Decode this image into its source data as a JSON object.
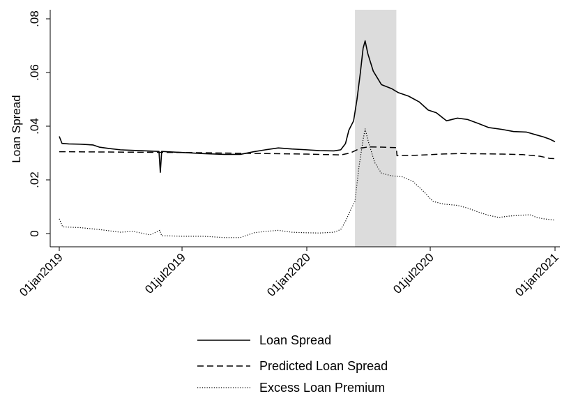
{
  "chart_data": {
    "type": "line",
    "title": "",
    "xlabel": "",
    "ylabel": "Loan Spread",
    "x_axis": {
      "type": "date",
      "range": [
        "2019-01-01",
        "2021-01-01"
      ],
      "ticks": [
        {
          "date": "2019-01-01",
          "label": "01jan2019"
        },
        {
          "date": "2019-07-01",
          "label": "01jul2019"
        },
        {
          "date": "2020-01-01",
          "label": "01jan2020"
        },
        {
          "date": "2020-07-01",
          "label": "01jul2020"
        },
        {
          "date": "2021-01-01",
          "label": "01jan2021"
        }
      ]
    },
    "y_axis": {
      "range": [
        0,
        0.08
      ],
      "ticks": [
        {
          "value": 0,
          "label": "0"
        },
        {
          "value": 0.02,
          "label": ".02"
        },
        {
          "value": 0.04,
          "label": ".04"
        },
        {
          "value": 0.06,
          "label": ".06"
        },
        {
          "value": 0.08,
          "label": ".08"
        }
      ]
    },
    "grid": false,
    "legend_position": "bottom",
    "shaded_period": {
      "start": "2020-03-12",
      "end": "2020-05-12",
      "color": "#dcdcdc"
    },
    "series": [
      {
        "name": "Loan Spread",
        "style": "solid",
        "color": "#000000",
        "points": [
          [
            "2019-01-01",
            0.0362
          ],
          [
            "2019-01-05",
            0.0336
          ],
          [
            "2019-01-15",
            0.0334
          ],
          [
            "2019-02-01",
            0.0333
          ],
          [
            "2019-02-20",
            0.033
          ],
          [
            "2019-03-01",
            0.0322
          ],
          [
            "2019-03-15",
            0.0317
          ],
          [
            "2019-04-01",
            0.0312
          ],
          [
            "2019-04-20",
            0.031
          ],
          [
            "2019-05-10",
            0.0308
          ],
          [
            "2019-05-28",
            0.0306
          ],
          [
            "2019-05-30",
            0.0228
          ],
          [
            "2019-06-01",
            0.0306
          ],
          [
            "2019-07-01",
            0.0302
          ],
          [
            "2019-08-01",
            0.0298
          ],
          [
            "2019-09-01",
            0.0295
          ],
          [
            "2019-09-25",
            0.0295
          ],
          [
            "2019-10-15",
            0.0305
          ],
          [
            "2019-11-01",
            0.0312
          ],
          [
            "2019-11-20",
            0.0319
          ],
          [
            "2019-12-10",
            0.0315
          ],
          [
            "2020-01-01",
            0.0312
          ],
          [
            "2020-01-20",
            0.0309
          ],
          [
            "2020-02-10",
            0.0308
          ],
          [
            "2020-02-20",
            0.0312
          ],
          [
            "2020-02-27",
            0.0335
          ],
          [
            "2020-03-03",
            0.0385
          ],
          [
            "2020-03-10",
            0.042
          ],
          [
            "2020-03-15",
            0.05
          ],
          [
            "2020-03-20",
            0.06
          ],
          [
            "2020-03-24",
            0.069
          ],
          [
            "2020-03-27",
            0.0718
          ],
          [
            "2020-03-31",
            0.067
          ],
          [
            "2020-04-08",
            0.0605
          ],
          [
            "2020-04-20",
            0.0555
          ],
          [
            "2020-05-05",
            0.054
          ],
          [
            "2020-05-15",
            0.0525
          ],
          [
            "2020-05-30",
            0.0512
          ],
          [
            "2020-06-15",
            0.049
          ],
          [
            "2020-06-28",
            0.046
          ],
          [
            "2020-07-10",
            0.045
          ],
          [
            "2020-07-25",
            0.042
          ],
          [
            "2020-08-10",
            0.043
          ],
          [
            "2020-08-25",
            0.0425
          ],
          [
            "2020-09-10",
            0.041
          ],
          [
            "2020-09-25",
            0.0395
          ],
          [
            "2020-10-15",
            0.0388
          ],
          [
            "2020-11-01",
            0.038
          ],
          [
            "2020-11-20",
            0.0378
          ],
          [
            "2020-12-01",
            0.037
          ],
          [
            "2020-12-15",
            0.036
          ],
          [
            "2020-12-24",
            0.0352
          ],
          [
            "2021-01-01",
            0.0342
          ]
        ]
      },
      {
        "name": "Predicted Loan Spread",
        "style": "dashed",
        "color": "#000000",
        "points": [
          [
            "2019-01-01",
            0.0305
          ],
          [
            "2019-03-01",
            0.0304
          ],
          [
            "2019-05-01",
            0.0303
          ],
          [
            "2019-07-01",
            0.0302
          ],
          [
            "2019-09-01",
            0.03
          ],
          [
            "2019-11-01",
            0.0298
          ],
          [
            "2020-01-01",
            0.0296
          ],
          [
            "2020-02-20",
            0.0293
          ],
          [
            "2020-03-05",
            0.03
          ],
          [
            "2020-03-20",
            0.0318
          ],
          [
            "2020-04-01",
            0.0323
          ],
          [
            "2020-04-20",
            0.0322
          ],
          [
            "2020-05-12",
            0.032
          ],
          [
            "2020-05-13",
            0.029
          ],
          [
            "2020-06-15",
            0.0292
          ],
          [
            "2020-07-15",
            0.0296
          ],
          [
            "2020-08-15",
            0.0298
          ],
          [
            "2020-09-15",
            0.0297
          ],
          [
            "2020-10-15",
            0.0296
          ],
          [
            "2020-11-15",
            0.0294
          ],
          [
            "2020-12-10",
            0.0288
          ],
          [
            "2020-12-24",
            0.028
          ],
          [
            "2021-01-01",
            0.0279
          ]
        ]
      },
      {
        "name": "Excess Loan Premium",
        "style": "dotted",
        "color": "#000000",
        "points": [
          [
            "2019-01-01",
            0.0055
          ],
          [
            "2019-01-06",
            0.0025
          ],
          [
            "2019-02-01",
            0.0022
          ],
          [
            "2019-03-01",
            0.0015
          ],
          [
            "2019-04-01",
            0.0005
          ],
          [
            "2019-04-20",
            0.0008
          ],
          [
            "2019-05-15",
            -0.0005
          ],
          [
            "2019-05-29",
            0.0012
          ],
          [
            "2019-06-01",
            -0.0008
          ],
          [
            "2019-07-01",
            -0.001
          ],
          [
            "2019-08-01",
            -0.001
          ],
          [
            "2019-09-01",
            -0.0015
          ],
          [
            "2019-09-25",
            -0.0015
          ],
          [
            "2019-10-15",
            0.0003
          ],
          [
            "2019-11-01",
            0.0008
          ],
          [
            "2019-11-20",
            0.0012
          ],
          [
            "2019-12-10",
            0.0005
          ],
          [
            "2020-01-01",
            0.0003
          ],
          [
            "2020-01-20",
            0.0002
          ],
          [
            "2020-02-10",
            0.0005
          ],
          [
            "2020-02-20",
            0.0015
          ],
          [
            "2020-02-27",
            0.0045
          ],
          [
            "2020-03-05",
            0.0085
          ],
          [
            "2020-03-12",
            0.012
          ],
          [
            "2020-03-18",
            0.025
          ],
          [
            "2020-03-24",
            0.035
          ],
          [
            "2020-03-27",
            0.039
          ],
          [
            "2020-04-01",
            0.034
          ],
          [
            "2020-04-10",
            0.0265
          ],
          [
            "2020-04-20",
            0.0225
          ],
          [
            "2020-05-05",
            0.0215
          ],
          [
            "2020-05-20",
            0.0212
          ],
          [
            "2020-06-05",
            0.0195
          ],
          [
            "2020-06-20",
            0.016
          ],
          [
            "2020-07-05",
            0.012
          ],
          [
            "2020-07-20",
            0.011
          ],
          [
            "2020-08-10",
            0.0105
          ],
          [
            "2020-08-25",
            0.0095
          ],
          [
            "2020-09-10",
            0.008
          ],
          [
            "2020-09-25",
            0.0068
          ],
          [
            "2020-10-10",
            0.006
          ],
          [
            "2020-10-25",
            0.0065
          ],
          [
            "2020-11-10",
            0.0068
          ],
          [
            "2020-11-25",
            0.007
          ],
          [
            "2020-12-05",
            0.006
          ],
          [
            "2020-12-15",
            0.0055
          ],
          [
            "2021-01-01",
            0.005
          ]
        ]
      }
    ]
  }
}
